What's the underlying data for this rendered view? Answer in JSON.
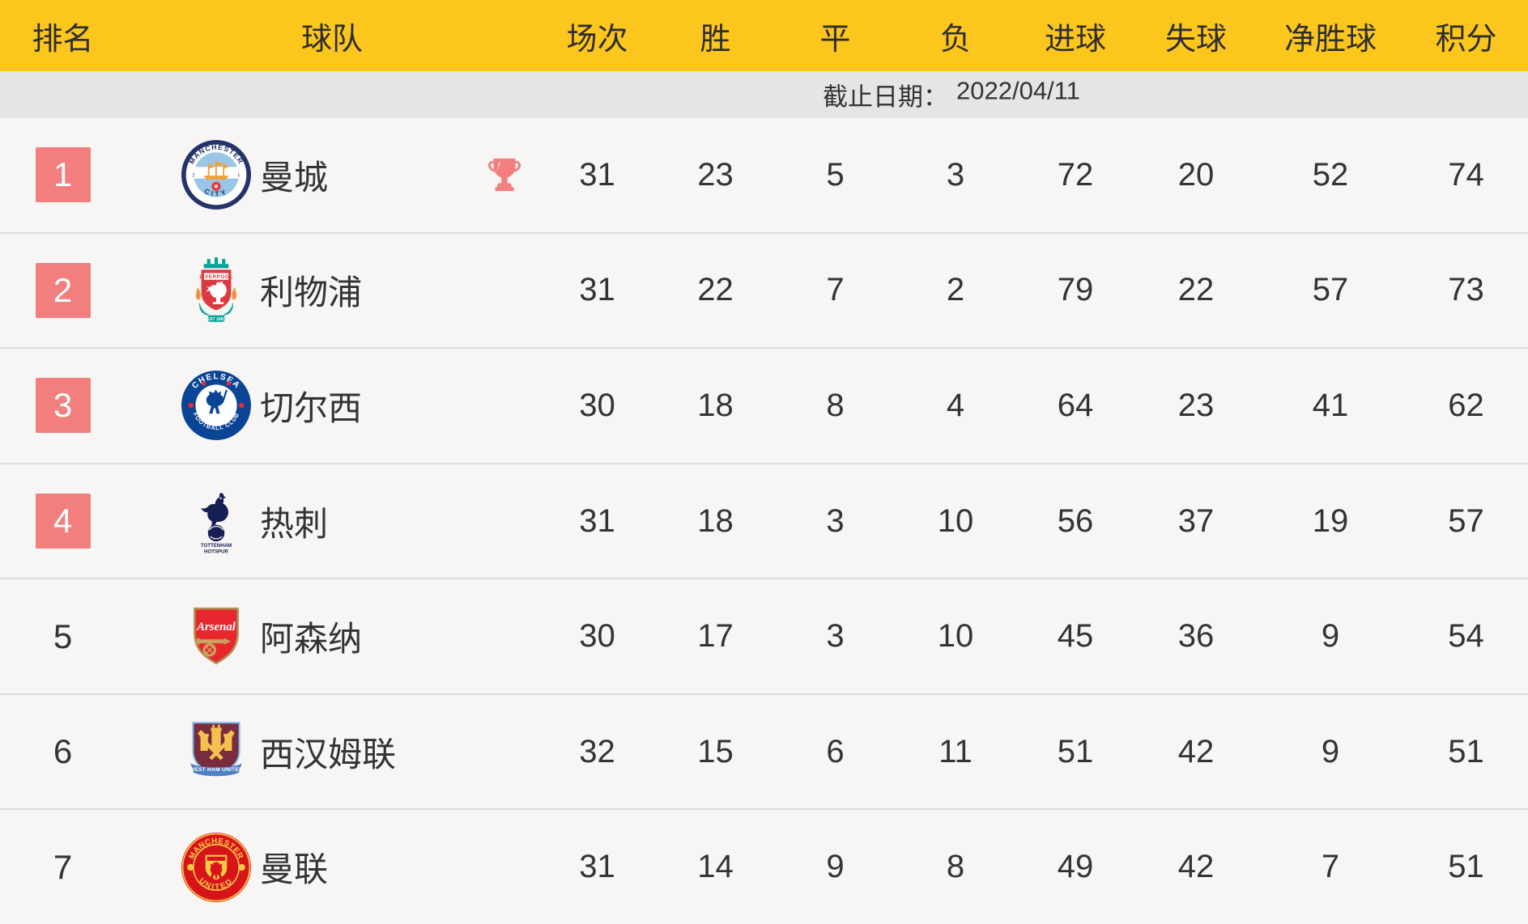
{
  "header": {
    "columns": [
      "排名",
      "球队",
      "场次",
      "胜",
      "平",
      "负",
      "进球",
      "失球",
      "净胜球",
      "积分"
    ]
  },
  "datebar": {
    "label": "截止日期：",
    "value": "2022/04/11"
  },
  "rows": [
    {
      "rank": "1",
      "team": "曼城",
      "club": "man-city",
      "top4": true,
      "champion": true,
      "played": "31",
      "won": "23",
      "drawn": "5",
      "lost": "3",
      "goals_for": "72",
      "goals_against": "20",
      "goal_diff": "52",
      "points": "74"
    },
    {
      "rank": "2",
      "team": "利物浦",
      "club": "liverpool",
      "top4": true,
      "champion": false,
      "played": "31",
      "won": "22",
      "drawn": "7",
      "lost": "2",
      "goals_for": "79",
      "goals_against": "22",
      "goal_diff": "57",
      "points": "73"
    },
    {
      "rank": "3",
      "team": "切尔西",
      "club": "chelsea",
      "top4": true,
      "champion": false,
      "played": "30",
      "won": "18",
      "drawn": "8",
      "lost": "4",
      "goals_for": "64",
      "goals_against": "23",
      "goal_diff": "41",
      "points": "62"
    },
    {
      "rank": "4",
      "team": "热刺",
      "club": "tottenham",
      "top4": true,
      "champion": false,
      "played": "31",
      "won": "18",
      "drawn": "3",
      "lost": "10",
      "goals_for": "56",
      "goals_against": "37",
      "goal_diff": "19",
      "points": "57"
    },
    {
      "rank": "5",
      "team": "阿森纳",
      "club": "arsenal",
      "top4": false,
      "champion": false,
      "played": "30",
      "won": "17",
      "drawn": "3",
      "lost": "10",
      "goals_for": "45",
      "goals_against": "36",
      "goal_diff": "9",
      "points": "54"
    },
    {
      "rank": "6",
      "team": "西汉姆联",
      "club": "west-ham",
      "top4": false,
      "champion": false,
      "played": "32",
      "won": "15",
      "drawn": "6",
      "lost": "11",
      "goals_for": "51",
      "goals_against": "42",
      "goal_diff": "9",
      "points": "51"
    },
    {
      "rank": "7",
      "team": "曼联",
      "club": "man-united",
      "top4": false,
      "champion": false,
      "played": "31",
      "won": "14",
      "drawn": "9",
      "lost": "8",
      "goals_for": "49",
      "goals_against": "42",
      "goal_diff": "7",
      "points": "51"
    }
  ],
  "icons": {
    "champion_marker": "trophy-icon"
  },
  "colors": {
    "header_bg": "#FCC61D",
    "date_bg": "#E5E5E5",
    "row_bg": "#F8F6F4",
    "divider": "#DDDCDA",
    "highlight": "#F27E7E",
    "text": "#333333"
  }
}
